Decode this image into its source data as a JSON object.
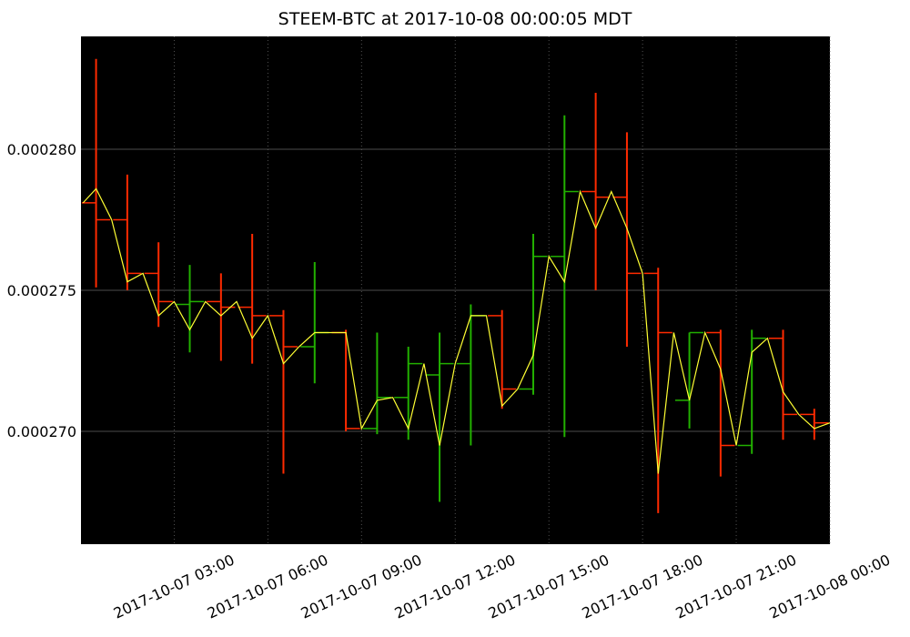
{
  "chart_data": {
    "type": "candlestick",
    "title": "STEEM-BTC at 2017-10-08 00:00:05 MDT",
    "xlim": [
      "2017-10-07 00:01",
      "2017-10-08 00:00"
    ],
    "xticks": [
      "2017-10-07 03:00",
      "2017-10-07 06:00",
      "2017-10-07 09:00",
      "2017-10-07 12:00",
      "2017-10-07 15:00",
      "2017-10-07 18:00",
      "2017-10-07 21:00",
      "2017-10-08 00:00"
    ],
    "ylim": [
      0.000266,
      0.000284
    ],
    "yticks": [
      {
        "value": 0.00027,
        "label": "0.000270"
      },
      {
        "value": 0.000275,
        "label": "0.000275"
      },
      {
        "value": 0.00028,
        "label": "0.000280"
      }
    ],
    "grid": true,
    "candles": {
      "up_color": "#22b000",
      "down_color": "#ff2a00",
      "x": [
        "2017-10-07 00:00",
        "2017-10-07 01:00",
        "2017-10-07 02:00",
        "2017-10-07 03:00",
        "2017-10-07 04:00",
        "2017-10-07 05:00",
        "2017-10-07 06:00",
        "2017-10-07 07:00",
        "2017-10-07 08:00",
        "2017-10-07 09:00",
        "2017-10-07 10:00",
        "2017-10-07 11:00",
        "2017-10-07 12:00",
        "2017-10-07 13:00",
        "2017-10-07 14:00",
        "2017-10-07 15:00",
        "2017-10-07 16:00",
        "2017-10-07 17:00",
        "2017-10-07 18:00",
        "2017-10-07 19:00",
        "2017-10-07 20:00",
        "2017-10-07 21:00",
        "2017-10-07 22:00",
        "2017-10-07 23:00"
      ],
      "open": [
        0.0002781,
        0.0002775,
        0.0002756,
        0.0002745,
        0.0002746,
        0.0002744,
        0.0002741,
        0.000273,
        0.0002735,
        0.0002701,
        0.0002712,
        0.000272,
        0.0002724,
        0.0002741,
        0.0002715,
        0.0002762,
        0.0002785,
        0.0002783,
        0.0002756,
        0.0002711,
        0.0002735,
        0.0002695,
        0.0002733,
        0.0002706
      ],
      "high": [
        0.0002832,
        0.0002791,
        0.0002767,
        0.0002759,
        0.0002756,
        0.000277,
        0.0002743,
        0.000276,
        0.0002736,
        0.0002735,
        0.000273,
        0.0002735,
        0.0002745,
        0.0002743,
        0.000277,
        0.0002812,
        0.000282,
        0.0002806,
        0.0002758,
        0.0002735,
        0.0002736,
        0.0002736,
        0.0002736,
        0.0002708
      ],
      "low": [
        0.0002751,
        0.000275,
        0.0002737,
        0.0002728,
        0.0002725,
        0.0002724,
        0.0002685,
        0.0002717,
        0.00027,
        0.0002699,
        0.0002697,
        0.0002675,
        0.0002695,
        0.0002708,
        0.0002713,
        0.0002698,
        0.000275,
        0.000273,
        0.0002671,
        0.0002701,
        0.0002684,
        0.0002692,
        0.0002697,
        0.0002697
      ],
      "close": [
        0.0002775,
        0.0002756,
        0.0002746,
        0.0002746,
        0.0002744,
        0.0002741,
        0.000273,
        0.0002735,
        0.0002701,
        0.0002712,
        0.0002724,
        0.0002724,
        0.0002741,
        0.0002715,
        0.0002762,
        0.0002785,
        0.0002783,
        0.0002756,
        0.0002735,
        0.0002735,
        0.0002695,
        0.0002733,
        0.0002706,
        0.0002703
      ]
    },
    "line": {
      "color": "#ffff33",
      "x": [
        "2017-10-07 00:05",
        "2017-10-07 00:30",
        "2017-10-07 01:00",
        "2017-10-07 01:30",
        "2017-10-07 02:00",
        "2017-10-07 02:30",
        "2017-10-07 03:00",
        "2017-10-07 03:30",
        "2017-10-07 04:00",
        "2017-10-07 04:30",
        "2017-10-07 05:00",
        "2017-10-07 05:30",
        "2017-10-07 06:00",
        "2017-10-07 06:30",
        "2017-10-07 07:00",
        "2017-10-07 07:30",
        "2017-10-07 08:00",
        "2017-10-07 08:30",
        "2017-10-07 09:00",
        "2017-10-07 09:30",
        "2017-10-07 10:00",
        "2017-10-07 10:30",
        "2017-10-07 11:00",
        "2017-10-07 11:30",
        "2017-10-07 12:00",
        "2017-10-07 12:30",
        "2017-10-07 13:00",
        "2017-10-07 13:30",
        "2017-10-07 14:00",
        "2017-10-07 14:30",
        "2017-10-07 15:00",
        "2017-10-07 15:30",
        "2017-10-07 16:00",
        "2017-10-07 16:30",
        "2017-10-07 17:00",
        "2017-10-07 17:30",
        "2017-10-07 18:00",
        "2017-10-07 18:30",
        "2017-10-07 19:00",
        "2017-10-07 19:30",
        "2017-10-07 20:00",
        "2017-10-07 20:30",
        "2017-10-07 21:00",
        "2017-10-07 21:30",
        "2017-10-07 22:00",
        "2017-10-07 22:30",
        "2017-10-07 23:00",
        "2017-10-07 23:30",
        "2017-10-08 00:00"
      ],
      "values": [
        0.0002781,
        0.0002786,
        0.0002775,
        0.0002753,
        0.0002756,
        0.0002741,
        0.0002746,
        0.0002736,
        0.0002746,
        0.0002741,
        0.0002746,
        0.0002733,
        0.0002741,
        0.0002724,
        0.000273,
        0.0002735,
        0.0002735,
        0.0002735,
        0.0002701,
        0.0002711,
        0.0002712,
        0.0002701,
        0.0002724,
        0.0002695,
        0.0002724,
        0.0002741,
        0.0002741,
        0.0002709,
        0.0002715,
        0.0002727,
        0.0002762,
        0.0002753,
        0.0002785,
        0.0002772,
        0.0002785,
        0.0002772,
        0.0002756,
        0.0002685,
        0.0002735,
        0.0002711,
        0.0002735,
        0.0002722,
        0.0002695,
        0.0002728,
        0.0002733,
        0.0002714,
        0.0002706,
        0.0002701,
        0.0002703
      ]
    }
  }
}
